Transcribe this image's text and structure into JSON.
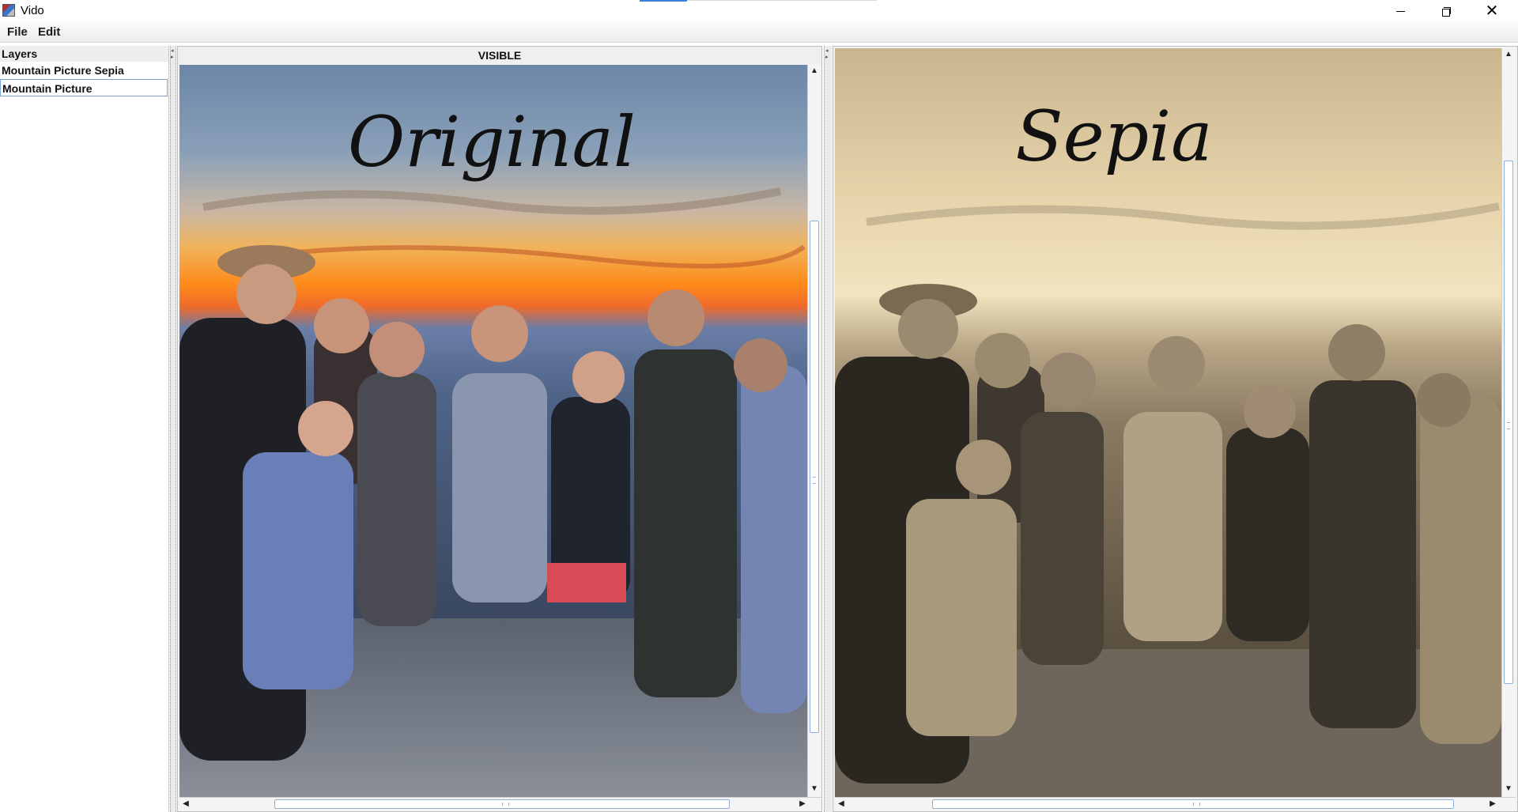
{
  "window": {
    "title": "Vido",
    "minimize_icon": "minimize-icon",
    "maximize_icon": "restore-icon",
    "close_icon": "close-icon"
  },
  "menu": {
    "items": [
      "File",
      "Edit"
    ]
  },
  "layers": {
    "header": "Layers",
    "items": [
      {
        "label": "Mountain Picture Sepia",
        "selected": false
      },
      {
        "label": "Mountain Picture",
        "selected": true
      }
    ]
  },
  "left_pane": {
    "header": "VISIBLE",
    "image_caption": "Original"
  },
  "right_pane": {
    "image_caption": "Sepia"
  },
  "colors": {
    "selection_border": "#7aa3d6",
    "scroll_thumb_border": "#8fb0d8"
  }
}
